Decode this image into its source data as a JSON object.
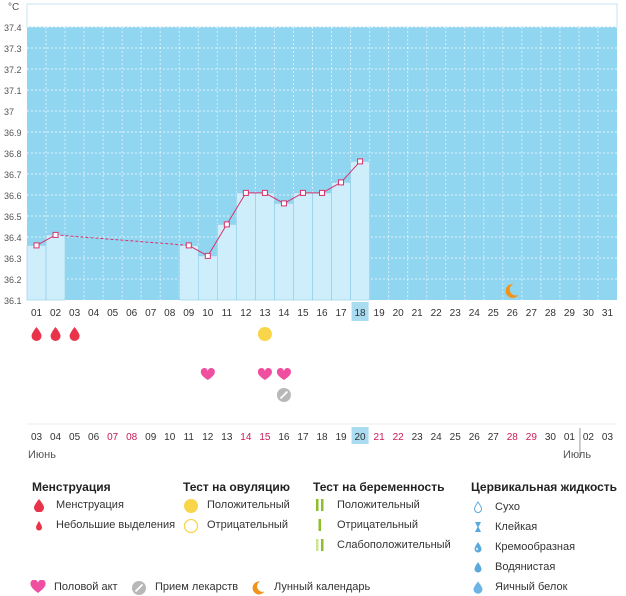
{
  "chart_data": {
    "type": "line",
    "unit_label": "°C",
    "y_ticks": [
      "37.4",
      "37.3",
      "37.2",
      "37.1",
      "37",
      "36.9",
      "36.8",
      "36.7",
      "36.6",
      "36.5",
      "36.4",
      "36.3",
      "36.2",
      "36.1"
    ],
    "ylim": [
      36.1,
      37.4
    ],
    "cycle_days": [
      "01",
      "02",
      "03",
      "04",
      "05",
      "06",
      "07",
      "08",
      "09",
      "10",
      "11",
      "12",
      "13",
      "14",
      "15",
      "16",
      "17",
      "18",
      "19",
      "20",
      "21",
      "22",
      "23",
      "24",
      "25",
      "26",
      "27",
      "28",
      "29",
      "30",
      "31"
    ],
    "current_cycle_day": "18",
    "series": [
      {
        "values": [
          36.36,
          36.41,
          null,
          null,
          null,
          null,
          null,
          null,
          36.36,
          36.31,
          36.46,
          36.61,
          36.61,
          36.56,
          36.61,
          36.61,
          36.66,
          36.76,
          null,
          null,
          null,
          null,
          null,
          null,
          null,
          null,
          null,
          null,
          null,
          null,
          null
        ]
      }
    ],
    "moon_day": "26",
    "menstruation_days": [
      "01",
      "02",
      "03"
    ],
    "positive_ovulation_test_day": "13",
    "intercourse_days": [
      "10",
      "13",
      "14"
    ],
    "medication_days": [
      "14"
    ],
    "calendar_dates": [
      {
        "label": "03",
        "color": "#333333"
      },
      {
        "label": "04",
        "color": "#333333"
      },
      {
        "label": "05",
        "color": "#333333"
      },
      {
        "label": "06",
        "color": "#333333"
      },
      {
        "label": "07",
        "color": "#cc1a55"
      },
      {
        "label": "08",
        "color": "#cc1a55"
      },
      {
        "label": "09",
        "color": "#333333"
      },
      {
        "label": "10",
        "color": "#333333"
      },
      {
        "label": "11",
        "color": "#333333"
      },
      {
        "label": "12",
        "color": "#333333"
      },
      {
        "label": "13",
        "color": "#333333"
      },
      {
        "label": "14",
        "color": "#cc1a55"
      },
      {
        "label": "15",
        "color": "#cc1a55"
      },
      {
        "label": "16",
        "color": "#333333"
      },
      {
        "label": "17",
        "color": "#333333"
      },
      {
        "label": "18",
        "color": "#333333"
      },
      {
        "label": "19",
        "color": "#333333"
      },
      {
        "label": "20",
        "color": "#333333"
      },
      {
        "label": "21",
        "color": "#cc1a55"
      },
      {
        "label": "22",
        "color": "#cc1a55"
      },
      {
        "label": "23",
        "color": "#333333"
      },
      {
        "label": "24",
        "color": "#333333"
      },
      {
        "label": "25",
        "color": "#333333"
      },
      {
        "label": "26",
        "color": "#333333"
      },
      {
        "label": "27",
        "color": "#333333"
      },
      {
        "label": "28",
        "color": "#cc1a55"
      },
      {
        "label": "29",
        "color": "#cc1a55"
      },
      {
        "label": "30",
        "color": "#333333"
      },
      {
        "label": "01",
        "color": "#333333"
      },
      {
        "label": "02",
        "color": "#333333"
      },
      {
        "label": "03",
        "color": "#333333"
      }
    ],
    "today_date": "20",
    "month_labels": [
      "Июнь",
      "Июль"
    ]
  },
  "colors": {
    "background": "#91d6f1",
    "bar_fill": "#cfeefb",
    "bar_stroke": "#8ccbe6",
    "line": "#d6336c",
    "highlight": "#a9dcf0",
    "menstruation": "#e8334a",
    "heart": "#f04fa0",
    "ovulation_positive": "#f9d54a",
    "moon": "#f0941c",
    "pregnancy_green": "#8cbf2a",
    "pregnancy_light": "#cfe48f",
    "fluid_blue": "#5aa8dc",
    "pill_gray": "#b8b8b8"
  },
  "legend": {
    "menstruation": {
      "title": "Менструация",
      "items": [
        {
          "label": "Менструация",
          "icon": "blood-drop-large-icon"
        },
        {
          "label": "Небольшие выделения",
          "icon": "blood-drop-small-icon"
        }
      ]
    },
    "ovulation": {
      "title": "Тест на овуляцию",
      "items": [
        {
          "label": "Положительный",
          "icon": "ovulation-positive-icon"
        },
        {
          "label": "Отрицательный",
          "icon": "ovulation-negative-icon"
        }
      ]
    },
    "pregnancy": {
      "title": "Тест на беременность",
      "items": [
        {
          "label": "Положительный",
          "icon": "pregnancy-positive-icon"
        },
        {
          "label": "Отрицательный",
          "icon": "pregnancy-negative-icon"
        },
        {
          "label": "Слабоположительный",
          "icon": "pregnancy-weak-icon"
        }
      ]
    },
    "cervical": {
      "title": "Цервикальная жидкость",
      "items": [
        {
          "label": "Сухо",
          "icon": "dry-drop-icon"
        },
        {
          "label": "Клейкая",
          "icon": "sticky-icon"
        },
        {
          "label": "Кремообразная",
          "icon": "creamy-drop-icon"
        },
        {
          "label": "Водянистая",
          "icon": "watery-drop-icon"
        },
        {
          "label": "Яичный белок",
          "icon": "egg-white-icon"
        }
      ]
    },
    "bottom": [
      {
        "label": "Половой акт",
        "icon": "heart-icon"
      },
      {
        "label": "Прием лекарств",
        "icon": "pill-icon"
      },
      {
        "label": "Лунный календарь",
        "icon": "moon-icon"
      }
    ]
  }
}
